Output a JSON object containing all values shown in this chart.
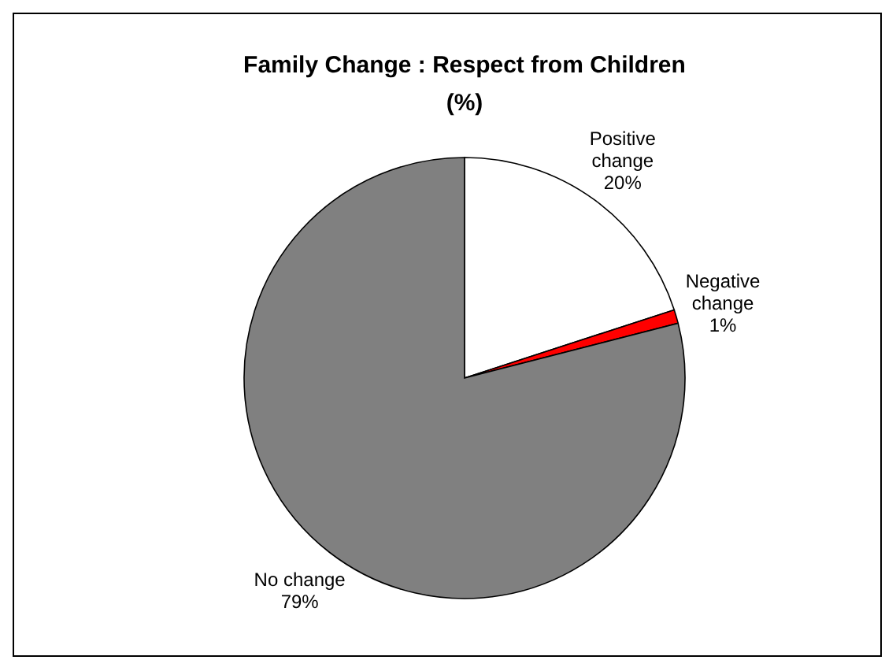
{
  "chart_data": {
    "type": "pie",
    "title": "Family Change : Respect from Children (%)",
    "categories": [
      "Positive change",
      "Negative change",
      "No change"
    ],
    "values": [
      20,
      1,
      79
    ],
    "colors": [
      "#ffffff",
      "#ff0000",
      "#808080"
    ],
    "value_labels": [
      "20%",
      "1%",
      "79%"
    ],
    "legend": false
  }
}
